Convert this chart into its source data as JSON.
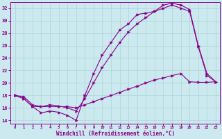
{
  "background_color": "#cbe9ee",
  "grid_color": "#aad4db",
  "line_color": "#880088",
  "xlim": [
    -0.5,
    23.5
  ],
  "ylim": [
    13.5,
    33.0
  ],
  "xticks": [
    0,
    1,
    2,
    3,
    4,
    5,
    6,
    7,
    8,
    9,
    10,
    11,
    12,
    13,
    14,
    15,
    16,
    17,
    18,
    19,
    20,
    21,
    22,
    23
  ],
  "yticks": [
    14,
    16,
    18,
    20,
    22,
    24,
    26,
    28,
    30,
    32
  ],
  "xlabel": "Windchill (Refroidissement éolien,°C)",
  "s1_x": [
    0,
    1,
    2,
    3,
    4,
    5,
    6,
    7,
    8,
    9,
    10,
    11,
    12,
    13,
    14,
    15,
    16,
    17,
    18,
    19,
    20,
    21,
    22,
    23
  ],
  "s1_y": [
    18.0,
    17.5,
    16.2,
    15.2,
    15.5,
    15.3,
    14.8,
    14.0,
    18.0,
    21.5,
    24.5,
    26.5,
    28.5,
    29.5,
    31.0,
    31.2,
    31.5,
    32.5,
    32.8,
    32.5,
    31.8,
    26.0,
    21.5,
    20.2
  ],
  "s2_x": [
    0,
    1,
    2,
    3,
    4,
    5,
    6,
    7,
    8,
    9,
    10,
    11,
    12,
    13,
    14,
    15,
    16,
    17,
    18,
    19,
    20,
    21,
    22,
    23
  ],
  "s2_y": [
    18.0,
    17.8,
    16.5,
    16.2,
    16.5,
    16.3,
    16.0,
    15.5,
    17.5,
    20.0,
    22.5,
    24.5,
    26.5,
    28.2,
    29.5,
    30.5,
    31.5,
    32.0,
    32.5,
    32.0,
    31.5,
    25.8,
    21.2,
    20.2
  ],
  "s3_x": [
    0,
    1,
    2,
    3,
    4,
    5,
    6,
    7,
    8,
    9,
    10,
    11,
    12,
    13,
    14,
    15,
    16,
    17,
    18,
    19,
    20,
    21,
    22,
    23
  ],
  "s3_y": [
    18.0,
    17.5,
    16.2,
    16.2,
    16.2,
    16.2,
    16.2,
    16.0,
    16.5,
    17.0,
    17.5,
    18.0,
    18.5,
    19.0,
    19.5,
    20.0,
    20.5,
    20.8,
    21.2,
    21.5,
    20.2,
    20.1,
    20.1,
    20.2
  ]
}
